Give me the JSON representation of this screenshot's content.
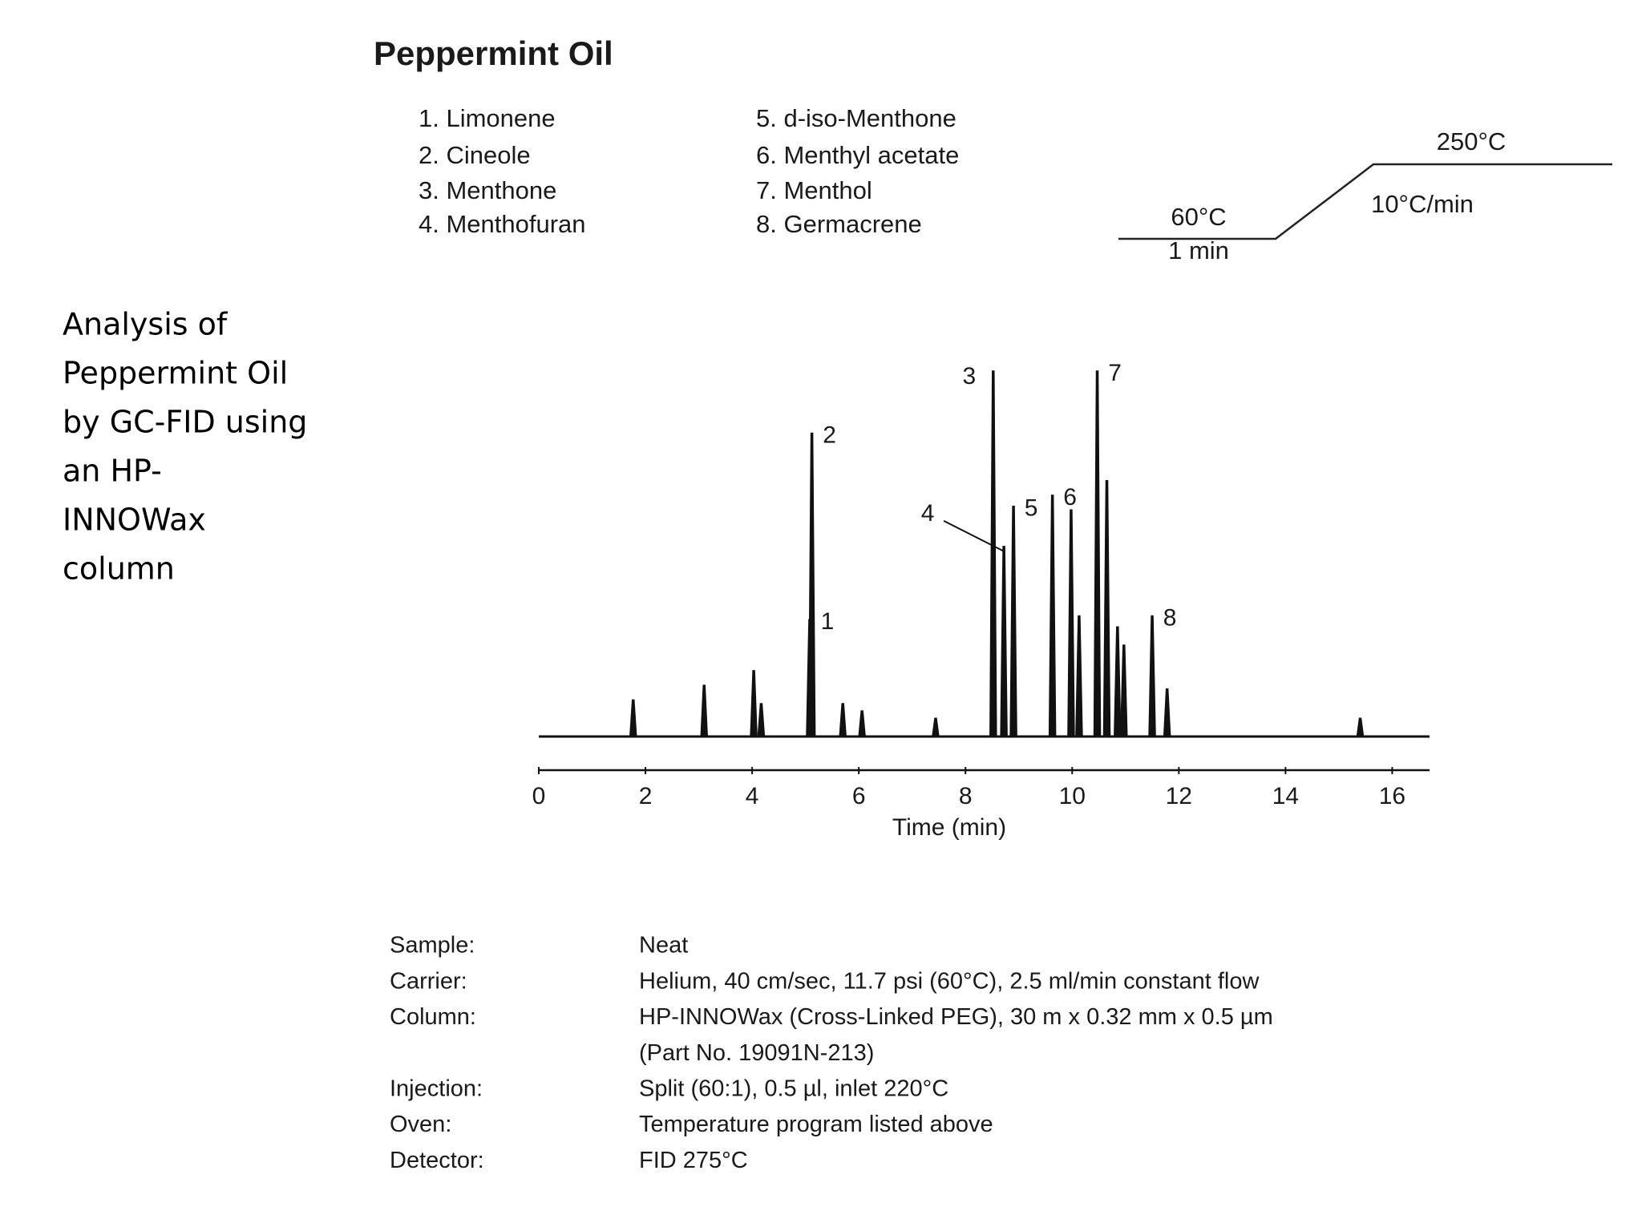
{
  "side_text": [
    "Analysis of",
    "Peppermint Oil",
    "by GC-FID using",
    "an HP-",
    "INNOWax",
    "column"
  ],
  "header": {
    "title": "Peppermint Oil"
  },
  "compounds": [
    "1. Limonene",
    "2. Cineole",
    "3. Menthone",
    "4. Menthofuran",
    "5. d-iso-Menthone",
    "6. Menthyl acetate",
    "7. Menthol",
    "8. Germacrene"
  ],
  "temperature_program": {
    "final_temp": "250°C",
    "rate": "10°C/min",
    "initial_temp": "60°C",
    "hold": "1 min"
  },
  "chart_data": {
    "type": "chromatogram",
    "xlabel": "Time (min)",
    "x": [
      1.77,
      3.1,
      4.03,
      4.17,
      5.08,
      5.12,
      5.7,
      6.06,
      7.44,
      8.52,
      8.72,
      8.9,
      9.63,
      9.98,
      10.13,
      10.47,
      10.65,
      10.85,
      10.97,
      11.5,
      11.78,
      15.4
    ],
    "values": [
      10,
      14,
      18,
      9,
      32,
      83,
      9,
      7,
      5,
      100,
      52,
      63,
      66,
      62,
      33,
      100,
      70,
      30,
      25,
      33,
      13,
      5
    ],
    "peak_labels": [
      null,
      null,
      null,
      null,
      "1",
      "2",
      null,
      null,
      null,
      "3",
      "4",
      "5",
      "6",
      null,
      null,
      "7",
      null,
      null,
      null,
      "8",
      null,
      null
    ],
    "xlim": [
      0,
      16.7
    ],
    "ylim": [
      0,
      100
    ],
    "xticks": [
      0,
      2,
      4,
      6,
      8,
      10,
      12,
      14,
      16
    ],
    "color": "#111111"
  },
  "conditions": [
    {
      "label": "Sample:",
      "value": [
        "Neat"
      ]
    },
    {
      "label": "Carrier:",
      "value": [
        "Helium, 40 cm/sec, 11.7 psi (60°C), 2.5 ml/min constant flow"
      ]
    },
    {
      "label": "Column:",
      "value": [
        "HP-INNOWax (Cross-Linked PEG), 30 m x 0.32 mm x 0.5 µm",
        "(Part No. 19091N-213)"
      ]
    },
    {
      "label": "Injection:",
      "value": [
        "Split (60:1), 0.5 µl, inlet 220°C"
      ]
    },
    {
      "label": "Oven:",
      "value": [
        "Temperature program listed above"
      ]
    },
    {
      "label": "Detector:",
      "value": [
        "FID 275°C"
      ]
    }
  ]
}
